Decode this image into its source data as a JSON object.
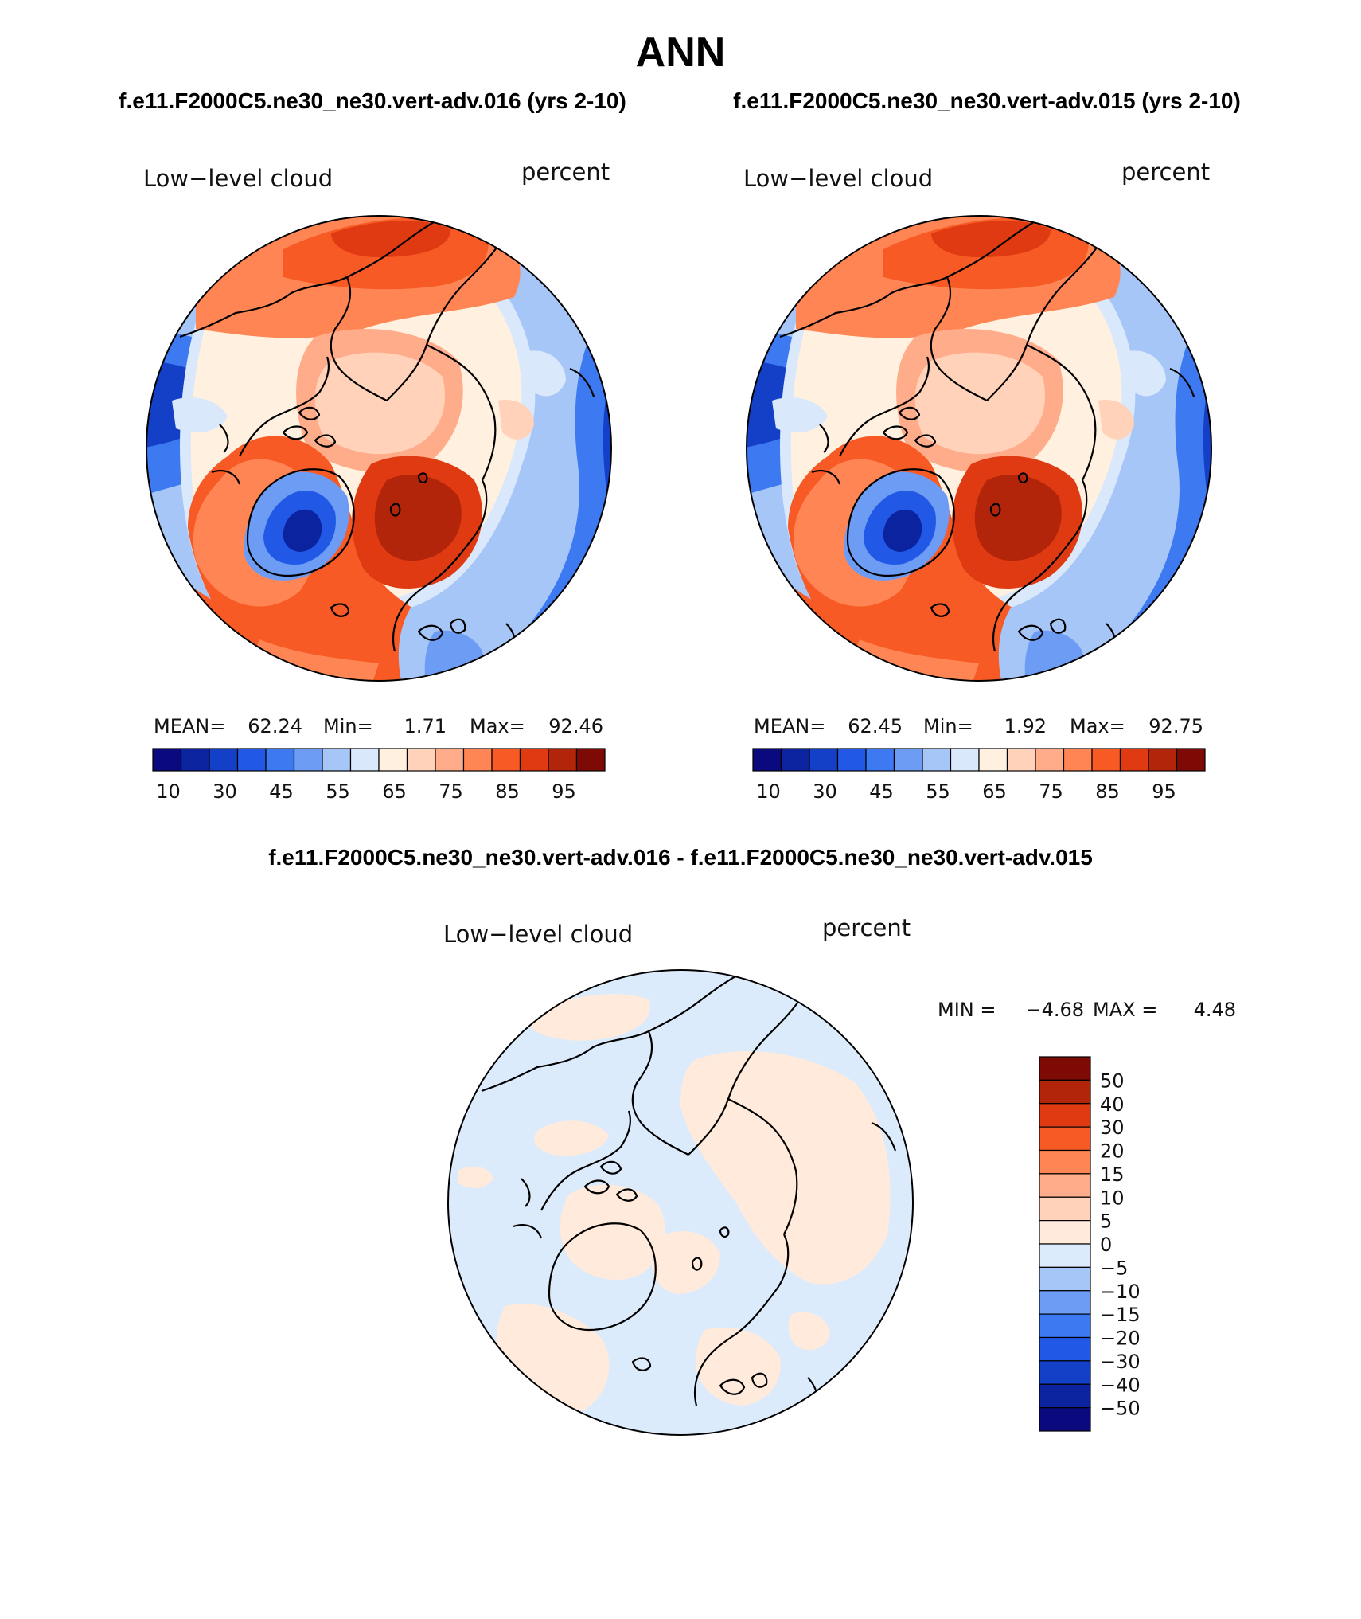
{
  "header": {
    "title": "ANN",
    "case_left": "f.e11.F2000C5.ne30_ne30.vert-adv.016 (yrs 2-10)",
    "case_right": "f.e11.F2000C5.ne30_ne30.vert-adv.015 (yrs 2-10)",
    "diff_title": "f.e11.F2000C5.ne30_ne30.vert-adv.016 - f.e11.F2000C5.ne30_ne30.vert-adv.015"
  },
  "panels": [
    {
      "variable": "Low−level cloud",
      "units": "percent",
      "mean_label": "MEAN=",
      "mean_value": "62.24",
      "min_label": "Min=",
      "min_value": "1.71",
      "max_label": "Max=",
      "max_value": "92.46"
    },
    {
      "variable": "Low−level cloud",
      "units": "percent",
      "mean_label": "MEAN=",
      "mean_value": "62.45",
      "min_label": "Min=",
      "min_value": "1.92",
      "max_label": "Max=",
      "max_value": "92.75"
    }
  ],
  "diff_panel": {
    "variable": "Low−level cloud",
    "units": "percent",
    "min_label": "MIN =",
    "min_value": "−4.68",
    "max_label": "MAX =",
    "max_value": "4.48"
  },
  "colorbar_abs": {
    "colors": [
      "#0a0a7e",
      "#0b239e",
      "#1440c8",
      "#2159e6",
      "#3d79f0",
      "#6d9cf4",
      "#a7c6f8",
      "#d9e8fb",
      "#fff0e0",
      "#ffd2b9",
      "#ffac8a",
      "#ff8654",
      "#f75a24",
      "#df3a12",
      "#b2250a",
      "#7d0a05"
    ],
    "labels": [
      "10",
      "30",
      "45",
      "55",
      "65",
      "75",
      "85",
      "95"
    ]
  },
  "colorbar_diff": {
    "colors": [
      "#7d0a05",
      "#b2250a",
      "#df3a12",
      "#f75a24",
      "#ff8654",
      "#ffac8a",
      "#ffd2b9",
      "#ffeadb",
      "#dcebfb",
      "#a7c6f8",
      "#6d9cf4",
      "#3d79f0",
      "#2159e6",
      "#1440c8",
      "#0b239e",
      "#0a0a7e"
    ],
    "labels": [
      "50",
      "40",
      "30",
      "20",
      "15",
      "10",
      "5",
      "0",
      "−5",
      "−10",
      "−15",
      "−20",
      "−30",
      "−40",
      "−50"
    ]
  },
  "map_colors": {
    "deep_blue": "#1440c8",
    "blue": "#3d79f0",
    "mid_blue": "#6d9cf4",
    "light_blue": "#a7c6f8",
    "pale_blue": "#d9e8fb",
    "pale_peach": "#fff0e0",
    "peach": "#ffd2b9",
    "salmon": "#ffac8a",
    "orange": "#ff8654",
    "red_orange": "#f75a24",
    "red": "#df3a12",
    "dark_red": "#b2250a",
    "diff_neg": "#dcebfb",
    "diff_pos": "#ffeadb"
  }
}
